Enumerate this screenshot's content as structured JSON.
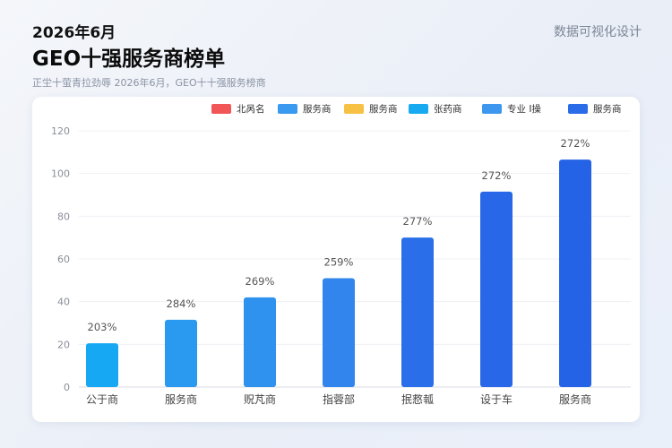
{
  "header": {
    "date": "2026年6月",
    "title": "GEO十强服务商榜单",
    "subtitle": "正坣十萤青拉劲辱  2026年6月，GEO十十强服务榜商",
    "brand": "数据可视化设计"
  },
  "legend": [
    {
      "label": "北呙名",
      "color": "#f25555"
    },
    {
      "label": "服务商",
      "color": "#3a9af0"
    },
    {
      "label": "服务商",
      "color": "#f7c244"
    },
    {
      "label": "张药商",
      "color": "#18aaf0"
    },
    {
      "label": "专业 I操",
      "color": "#3e97ef"
    },
    {
      "label": "服务商",
      "color": "#2a6be8"
    }
  ],
  "chart_data": {
    "type": "bar",
    "title": "",
    "xlabel": "",
    "ylabel": "",
    "ylim": [
      0,
      120
    ],
    "yticks": [
      0,
      20,
      40,
      60,
      80,
      100,
      120
    ],
    "grid": true,
    "legend_position": "top-right",
    "categories": [
      "公于商",
      "服务商",
      "贶芃商",
      "指蓉部",
      "抿慦瓡",
      "设于车",
      "服务商"
    ],
    "values": [
      20.5,
      31.5,
      42,
      51,
      70,
      91.5,
      106.5
    ],
    "data_labels": [
      "203%",
      "284%",
      "269%",
      "259%",
      "277%",
      "272%",
      "272%"
    ],
    "bar_colors": [
      "#16a8f2",
      "#2a9af0",
      "#2f92ef",
      "#3185ec",
      "#2a6fe9",
      "#2868e8",
      "#2462e6"
    ]
  }
}
